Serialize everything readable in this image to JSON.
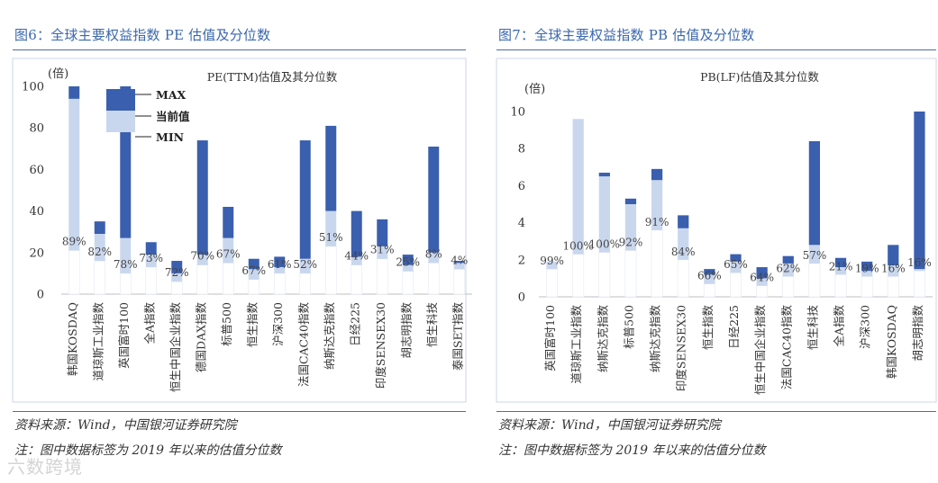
{
  "colors": {
    "max": "#3a5fae",
    "current": "#c9d7ee",
    "min": "#ffffff",
    "title": "#3a67ad",
    "rule": "#4d6da8",
    "border": "#cdd6e6"
  },
  "left": {
    "fig_title": "图6：全球主要权益指数 PE 估值及分位数",
    "source": "资料来源：Wind，中国银河证券研究院",
    "note": "注：图中数据标签为 2019 年以来的估值分位数"
  },
  "right": {
    "fig_title": "图7：全球主要权益指数 PB 估值及分位数",
    "source": "资料来源：Wind，中国银河证券研究院",
    "note": "注：图中数据标签为 2019 年以来的估值分位数"
  },
  "watermark": "六数跨境",
  "chart_data": [
    {
      "type": "bar",
      "subtype": "floating-range",
      "title": "PE(TTM)估值及其分位数",
      "ylabel": "(倍)",
      "ylim": [
        0,
        100
      ],
      "yticks": [
        "0",
        "20",
        "40",
        "60",
        "80",
        "100"
      ],
      "legend": {
        "max": "MAX",
        "current": "当前值",
        "min": "MIN"
      },
      "categories": [
        "韩国KOSDAQ",
        "道琼斯工业指数",
        "英国富时100",
        "全A指数",
        "恒生中国企业指数",
        "德国DAX指数",
        "标普500",
        "恒生指数",
        "沪深300",
        "法国CAC40指数",
        "纳斯达克指数",
        "日经225",
        "印度SENSEX30",
        "胡志明指数",
        "恒生科技",
        "泰国SET指数"
      ],
      "series": [
        {
          "name": "MIN",
          "values": [
            21,
            16,
            10,
            13,
            6,
            14,
            15,
            7,
            10,
            10,
            23,
            14,
            17,
            11,
            15,
            12
          ]
        },
        {
          "name": "当前值",
          "values": [
            94,
            29,
            27,
            19,
            10,
            19,
            27,
            12,
            13,
            17,
            40,
            18,
            23,
            14,
            20,
            15
          ]
        },
        {
          "name": "MAX",
          "values": [
            100,
            35,
            100,
            25,
            16,
            74,
            42,
            17,
            18,
            74,
            81,
            40,
            36,
            19,
            71,
            16
          ]
        }
      ],
      "percentile_labels": [
        "89%",
        "82%",
        "78%",
        "73%",
        "72%",
        "70%",
        "67%",
        "67%",
        "61%",
        "52%",
        "51%",
        "44%",
        "31%",
        "25%",
        "8%",
        "4%"
      ]
    },
    {
      "type": "bar",
      "subtype": "floating-range",
      "title": "PB(LF)估值及其分位数",
      "ylabel": "(倍)",
      "ylim": [
        0,
        10
      ],
      "yticks": [
        "0",
        "2",
        "4",
        "6",
        "8",
        "10"
      ],
      "categories": [
        "英国富时100",
        "道琼斯工业指数",
        "纳斯达克指数",
        "标普500",
        "纳斯达克指数",
        "印度SENSEX30",
        "恒生指数",
        "日经225",
        "恒生中国企业指数",
        "法国CAC40指数",
        "恒生科技",
        "全A指数",
        "沪深300",
        "韩国KOSDAQ",
        "胡志明指数"
      ],
      "series": [
        {
          "name": "MIN",
          "values": [
            1.5,
            2.3,
            2.4,
            2.5,
            3.6,
            2.0,
            0.7,
            1.3,
            0.6,
            1.1,
            1.8,
            1.2,
            1.1,
            1.1,
            1.4
          ]
        },
        {
          "name": "当前值",
          "values": [
            1.9,
            9.6,
            6.5,
            5.0,
            6.3,
            3.7,
            1.2,
            1.9,
            1.0,
            1.8,
            2.8,
            1.6,
            1.4,
            1.7,
            1.5
          ]
        },
        {
          "name": "MAX",
          "values": [
            1.9,
            9.6,
            6.7,
            5.3,
            6.9,
            4.4,
            1.5,
            2.3,
            1.6,
            2.2,
            8.4,
            2.1,
            1.9,
            2.8,
            10.0
          ]
        }
      ],
      "percentile_labels": [
        "99%",
        "100%",
        "100%",
        "92%",
        "91%",
        "84%",
        "66%",
        "65%",
        "64%",
        "62%",
        "57%",
        "21%",
        "19%",
        "16%",
        "16%"
      ]
    }
  ]
}
